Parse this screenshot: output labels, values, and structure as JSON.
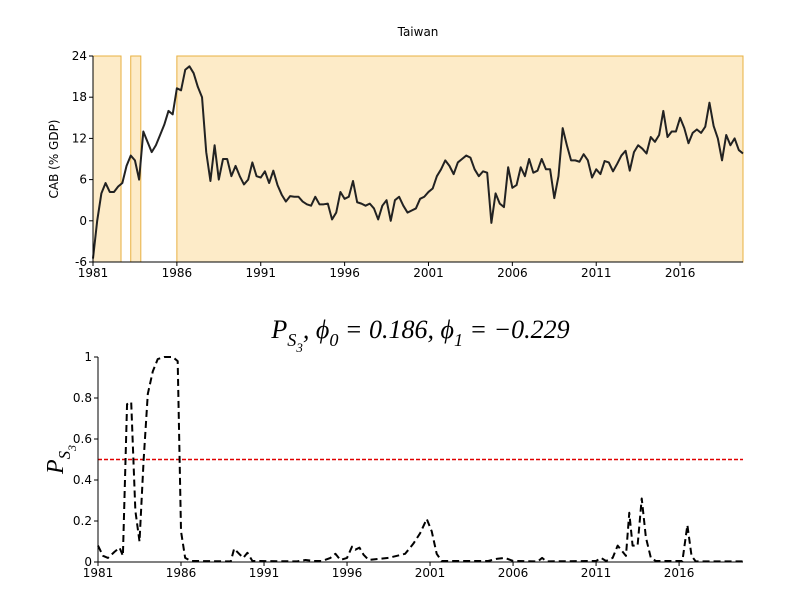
{
  "chart_data": [
    {
      "type": "line",
      "title": "Taiwan",
      "ylabel": "CAB (% GDP)",
      "xlim": [
        1981,
        2019.75
      ],
      "xticks": [
        1981,
        1986,
        1991,
        1996,
        2001,
        2006,
        2011,
        2016
      ],
      "ylim": [
        -6,
        24
      ],
      "yticks": [
        -6,
        0,
        6,
        12,
        18,
        24
      ],
      "color": "#222222",
      "dashed": false,
      "regions": [
        [
          1981,
          1982.67
        ],
        [
          1983.25,
          1983.85
        ],
        [
          1986,
          2019.75
        ]
      ],
      "region_color": "#fdebc8",
      "region_edge": "#e8b040",
      "x": [
        1981,
        1981.25,
        1981.5,
        1981.75,
        1982,
        1982.25,
        1982.5,
        1982.75,
        1983,
        1983.25,
        1983.5,
        1983.75,
        1984,
        1984.25,
        1984.5,
        1984.75,
        1985,
        1985.25,
        1985.5,
        1985.75,
        1986,
        1986.25,
        1986.5,
        1986.75,
        1987,
        1987.25,
        1987.5,
        1987.75,
        1988,
        1988.25,
        1988.5,
        1988.75,
        1989,
        1989.25,
        1989.5,
        1989.75,
        1990,
        1990.25,
        1990.5,
        1990.75,
        1991,
        1991.25,
        1991.5,
        1991.75,
        1992,
        1992.25,
        1992.5,
        1992.75,
        1993,
        1993.25,
        1993.5,
        1993.75,
        1994,
        1994.25,
        1994.5,
        1994.75,
        1995,
        1995.25,
        1995.5,
        1995.75,
        1996,
        1996.25,
        1996.5,
        1996.75,
        1997,
        1997.25,
        1997.5,
        1997.75,
        1998,
        1998.25,
        1998.5,
        1998.75,
        1999,
        1999.25,
        1999.5,
        1999.75,
        2000,
        2000.25,
        2000.5,
        2000.75,
        2001,
        2001.25,
        2001.5,
        2001.75,
        2002,
        2002.25,
        2002.5,
        2002.75,
        2003,
        2003.25,
        2003.5,
        2003.75,
        2004,
        2004.25,
        2004.5,
        2004.75,
        2005,
        2005.25,
        2005.5,
        2005.75,
        2006,
        2006.25,
        2006.5,
        2006.75,
        2007,
        2007.25,
        2007.5,
        2007.75,
        2008,
        2008.25,
        2008.5,
        2008.75,
        2009,
        2009.25,
        2009.5,
        2009.75,
        2010,
        2010.25,
        2010.5,
        2010.75,
        2011,
        2011.25,
        2011.5,
        2011.75,
        2012,
        2012.25,
        2012.5,
        2012.75,
        2013,
        2013.25,
        2013.5,
        2013.75,
        2014,
        2014.25,
        2014.5,
        2014.75,
        2015,
        2015.25,
        2015.5,
        2015.75,
        2016,
        2016.25,
        2016.5,
        2016.75,
        2017,
        2017.25,
        2017.5,
        2017.75,
        2018,
        2018.25,
        2018.5,
        2018.75,
        2019,
        2019.25,
        2019.5,
        2019.75
      ],
      "values": [
        -5.5,
        0,
        4,
        5.5,
        4.2,
        4.2,
        5,
        5.5,
        8,
        9.5,
        8.8,
        6,
        13,
        11.5,
        10,
        11,
        12.5,
        14,
        16,
        15.5,
        19.3,
        19,
        22,
        22.5,
        21.5,
        19.5,
        18,
        10,
        5.8,
        11,
        6,
        9,
        9,
        6.5,
        8,
        6.5,
        5.3,
        6,
        8.5,
        6.5,
        6.3,
        7.2,
        5.5,
        7.3,
        5.2,
        3.8,
        2.8,
        3.6,
        3.5,
        3.5,
        2.8,
        2.4,
        2.2,
        3.5,
        2.4,
        2.4,
        2.5,
        0.2,
        1.2,
        4.2,
        3.2,
        3.5,
        5.8,
        2.7,
        2.5,
        2.2,
        2.5,
        1.8,
        0.2,
        2.2,
        3,
        0,
        3,
        3.5,
        2.2,
        1.2,
        1.5,
        1.8,
        3.2,
        3.5,
        4.2,
        4.7,
        6.5,
        7.5,
        8.8,
        8,
        6.8,
        8.5,
        9,
        9.5,
        9.2,
        7.5,
        6.5,
        7.2,
        7,
        -0.3,
        4,
        2.5,
        2,
        7.8,
        4.8,
        5.2,
        7.8,
        6.5,
        9,
        7,
        7.3,
        9,
        7.5,
        7.5,
        3.3,
        6.5,
        13.5,
        11,
        8.8,
        8.8,
        8.6,
        9.7,
        8.8,
        6.3,
        7.5,
        6.8,
        8.7,
        8.5,
        7.2,
        8.3,
        9.5,
        10.2,
        7.3,
        10,
        11,
        10.5,
        9.8,
        12.2,
        11.5,
        12.5,
        16,
        12.2,
        13,
        13,
        15,
        13.5,
        11.3,
        12.8,
        13.3,
        12.8,
        13.7,
        17.2,
        13.8,
        12,
        8.8,
        12.5,
        11,
        12,
        10.3,
        9.8
      ]
    },
    {
      "type": "line",
      "title": [
        {
          "text": "P",
          "level": 0
        },
        {
          "text": "S",
          "level": 1
        },
        {
          "text": "3",
          "level": 2
        },
        {
          "text": ", ϕ",
          "level": 0
        },
        {
          "text": "0",
          "level": 1
        },
        {
          "text": " = 0.186, ϕ",
          "level": 0
        },
        {
          "text": "1",
          "level": 1
        },
        {
          "text": " = −0.229",
          "level": 0
        }
      ],
      "ylabel": [
        {
          "text": "P",
          "level": 0
        },
        {
          "text": "S",
          "level": 1
        },
        {
          "text": "3",
          "level": 2
        }
      ],
      "xlim": [
        1981,
        2019.85
      ],
      "xticks": [
        1981,
        1986,
        1991,
        1996,
        2001,
        2006,
        2011,
        2016
      ],
      "ylim": [
        0,
        1
      ],
      "yticks": [
        0,
        0.2,
        0.4,
        0.6,
        0.8,
        1
      ],
      "color": "#000000",
      "dashed": true,
      "hline": 0.5,
      "hline_color": "#e00000",
      "x": [
        1981,
        1981.3,
        1981.6,
        1982,
        1982.3,
        1982.5,
        1982.75,
        1983,
        1983.25,
        1983.5,
        1983.75,
        1984,
        1984.3,
        1984.6,
        1985,
        1985.5,
        1985.8,
        1986,
        1986.25,
        1986.6,
        1989,
        1989.2,
        1989.5,
        1989.75,
        1990,
        1990.3,
        1993,
        1993.5,
        1994,
        1994.5,
        1995,
        1995.3,
        1995.6,
        1996,
        1996.3,
        1996.5,
        1996.75,
        1997,
        1997.3,
        1998.5,
        1999.5,
        2000,
        2000.4,
        2000.8,
        2001.1,
        2001.4,
        2001.7,
        2004.5,
        2005,
        2005.5,
        2006,
        2007.5,
        2007.75,
        2008,
        2011,
        2011.3,
        2011.6,
        2012,
        2012.3,
        2012.6,
        2012.8,
        2013,
        2013.2,
        2013.5,
        2013.75,
        2014,
        2014.3,
        2014.6,
        2016.2,
        2016.5,
        2016.75,
        2017,
        2019.85
      ],
      "values": [
        0.08,
        0.03,
        0.02,
        0.05,
        0.07,
        0.03,
        0.77,
        0.78,
        0.25,
        0.1,
        0.5,
        0.82,
        0.93,
        0.99,
        1,
        1,
        0.98,
        0.15,
        0.02,
        0.005,
        0.003,
        0.065,
        0.04,
        0.02,
        0.045,
        0.005,
        0.003,
        0.01,
        0.005,
        0.005,
        0.02,
        0.04,
        0.01,
        0.02,
        0.075,
        0.06,
        0.07,
        0.035,
        0.01,
        0.02,
        0.04,
        0.09,
        0.14,
        0.21,
        0.15,
        0.04,
        0.005,
        0.005,
        0.015,
        0.02,
        0.005,
        0.003,
        0.02,
        0.003,
        0.005,
        0.02,
        0.005,
        0.02,
        0.08,
        0.05,
        0.03,
        0.24,
        0.08,
        0.08,
        0.31,
        0.12,
        0.02,
        0.005,
        0.005,
        0.18,
        0.03,
        0.003,
        0.003
      ]
    }
  ]
}
